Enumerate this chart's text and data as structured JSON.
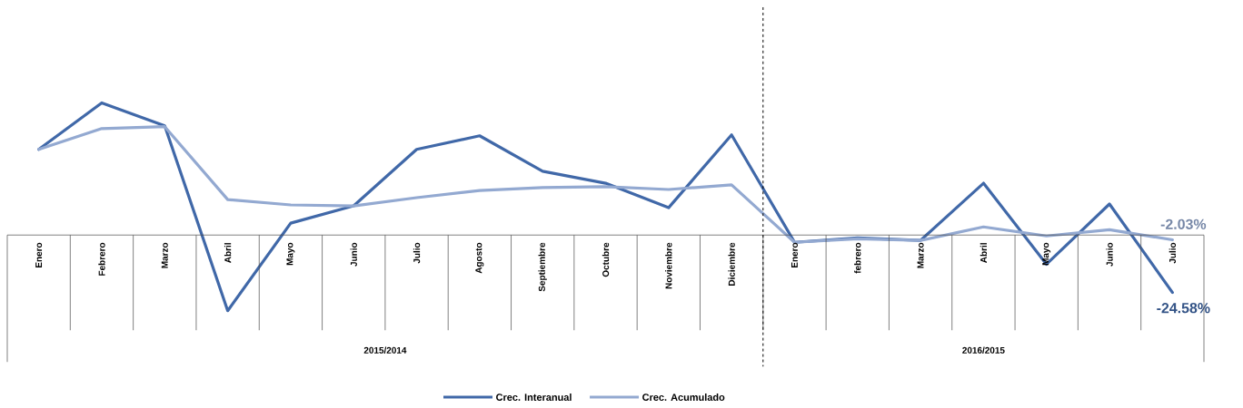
{
  "chart_data": {
    "type": "line",
    "categories": [
      "Enero",
      "Febrero",
      "Marzo",
      "Abril",
      "Mayo",
      "Junio",
      "Julio",
      "Agosto",
      "Septiembre",
      "Octubre",
      "Noviembre",
      "Diciembre",
      "Enero",
      "febrero",
      "Marzo",
      "Abril",
      "Mayo",
      "Junio",
      "Julio"
    ],
    "series": [
      {
        "name": "Crec. Interanual",
        "color": "#4068a8",
        "values": [
          36.7,
          56.6,
          46.8,
          -32.4,
          5.1,
          12.5,
          36.7,
          42.5,
          27.3,
          22.2,
          11.7,
          42.9,
          -3.1,
          -1.2,
          -2.3,
          22.2,
          -12.5,
          13.3,
          -24.58
        ],
        "value_labels": [
          null,
          null,
          null,
          null,
          null,
          null,
          null,
          null,
          null,
          null,
          null,
          null,
          null,
          null,
          null,
          null,
          null,
          null,
          "-24.58%"
        ]
      },
      {
        "name": "Crec. Acumulado",
        "color": "#93a9d1",
        "values": [
          36.7,
          45.6,
          46.4,
          15.2,
          12.9,
          12.5,
          16.0,
          19.1,
          20.3,
          20.7,
          19.5,
          21.5,
          -3.1,
          -1.6,
          -2.3,
          3.5,
          -0.4,
          2.3,
          -2.03
        ],
        "value_labels": [
          null,
          null,
          null,
          null,
          null,
          null,
          null,
          null,
          null,
          null,
          null,
          null,
          null,
          null,
          null,
          null,
          null,
          null,
          "-2.03%"
        ]
      }
    ],
    "annotations": [
      "2015/2014",
      "2016/2015"
    ],
    "legend": "bottom"
  }
}
